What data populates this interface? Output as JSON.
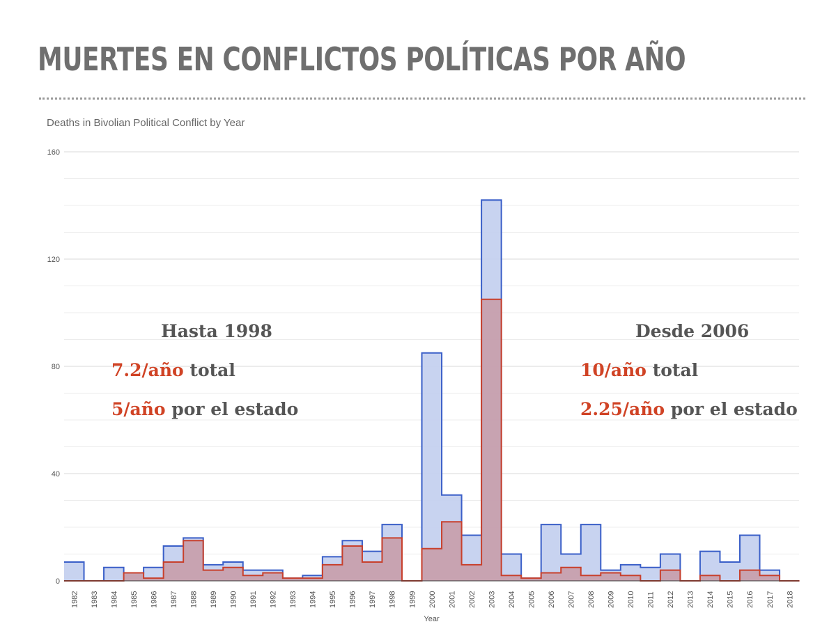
{
  "title": "MUERTES EN CONFLICTOS POLÍTICAS POR AÑO",
  "chart_data": {
    "type": "area",
    "title": "Deaths in Bivolian Political Conflict by Year",
    "xlabel": "Year",
    "ylabel": "",
    "ylim": [
      0,
      160
    ],
    "yticks": [
      "0",
      "40",
      "80",
      "120",
      "160"
    ],
    "categories": [
      "1982",
      "1983",
      "1984",
      "1985",
      "1986",
      "1987",
      "1988",
      "1989",
      "1990",
      "1991",
      "1992",
      "1993",
      "1994",
      "1995",
      "1996",
      "1997",
      "1998",
      "1999",
      "2000",
      "2001",
      "2002",
      "2003",
      "2004",
      "2005",
      "2006",
      "2007",
      "2008",
      "2009",
      "2010",
      "2011",
      "2012",
      "2013",
      "2014",
      "2015",
      "2016",
      "2017",
      "2018"
    ],
    "series": [
      {
        "color": "#3a5fc8",
        "fill": "#c5d1ef",
        "values": [
          7,
          0,
          5,
          3,
          5,
          13,
          16,
          6,
          7,
          4,
          4,
          1,
          2,
          9,
          15,
          11,
          21,
          0,
          85,
          32,
          17,
          142,
          10,
          1,
          21,
          10,
          21,
          4,
          6,
          5,
          10,
          0,
          11,
          7,
          17,
          4,
          0
        ]
      },
      {
        "color": "#c8402c",
        "fill": "#c89aa6",
        "values": [
          0,
          0,
          0,
          3,
          1,
          7,
          15,
          4,
          5,
          2,
          3,
          1,
          1,
          6,
          13,
          7,
          16,
          0,
          12,
          22,
          6,
          105,
          2,
          1,
          3,
          5,
          2,
          3,
          2,
          0,
          4,
          0,
          2,
          0,
          4,
          2,
          0
        ]
      }
    ]
  },
  "annotations": {
    "left": {
      "heading": "Hasta 1998",
      "line1_value": "7.2/año",
      "line1_text": " total",
      "line2_value": "5/año",
      "line2_text": " por el estado"
    },
    "right": {
      "heading": "Desde 2006",
      "line1_value": "10/año",
      "line1_text": " total",
      "line2_value": "2.25/año",
      "line2_text": " por el estado"
    }
  }
}
